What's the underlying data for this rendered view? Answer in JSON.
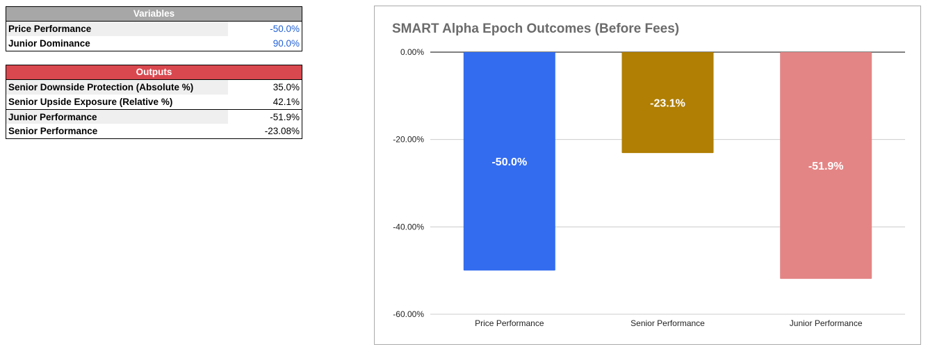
{
  "variables": {
    "header": "Variables",
    "header_color": "#a7a7a7",
    "rows": [
      {
        "label": "Price Performance",
        "value": "-50.0%"
      },
      {
        "label": "Junior Dominance",
        "value": "90.0%"
      }
    ]
  },
  "outputs": {
    "header": "Outputs",
    "header_color": "#d9484f",
    "rows": [
      {
        "label": "Senior Downside Protection (Absolute %)",
        "value": "35.0%"
      },
      {
        "label": "Senior Upside Exposure (Relative %)",
        "value": "42.1%"
      },
      {
        "label": "Junior Performance",
        "value": "-51.9%"
      },
      {
        "label": "Senior Performance",
        "value": "-23.08%"
      }
    ]
  },
  "chart_data": {
    "type": "bar",
    "title": "SMART Alpha Epoch Outcomes (Before Fees)",
    "categories": [
      "Price Performance",
      "Senior Performance",
      "Junior Performance"
    ],
    "values": [
      -50.0,
      -23.1,
      -51.9
    ],
    "data_labels": [
      "-50.0%",
      "-23.1%",
      "-51.9%"
    ],
    "colors": [
      "#336cef",
      "#b07f03",
      "#e48585"
    ],
    "ylim": [
      -60,
      0
    ],
    "yticks": [
      0,
      -20,
      -40,
      -60
    ],
    "ytick_labels": [
      "0.00%",
      "-20.00%",
      "-40.00%",
      "-60.00%"
    ],
    "grid": true,
    "xlabel": "",
    "ylabel": ""
  }
}
